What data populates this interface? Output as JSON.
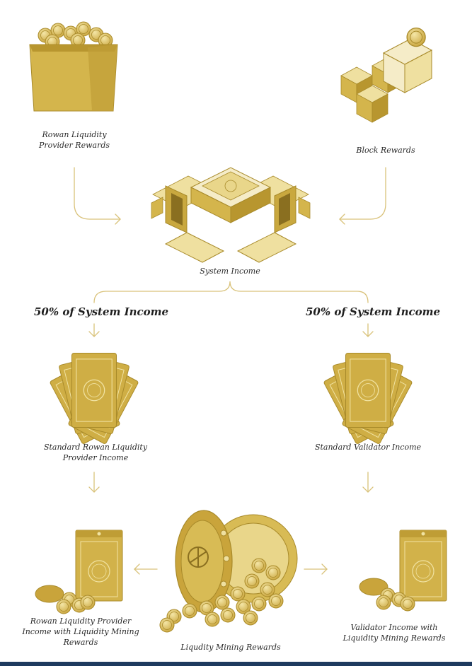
{
  "labels": {
    "rowan_lp_rewards": "Rowan Liquidity\nProvider Rewards",
    "block_rewards": "Block Rewards",
    "system_income": "System Income",
    "split_left": "50% of System Income",
    "split_right": "50% of System Income",
    "std_rowan_lp_income": "Standard Rowan Liquidity\nProvider Income",
    "std_validator_income": "Standard Validator Income",
    "rowan_lp_with_lm": "Rowan Liquidity Provider\nIncome with Liquidity Mining\nRewards",
    "liquidity_mining_rewards": "Liqudity Mining Rewards",
    "validator_with_lm": "Validator Income with\nLiquidity Mining Rewards"
  },
  "colors": {
    "gold": "#d4b54c",
    "gold_light": "#ecd98a",
    "gold_dark": "#a88a2a",
    "cream": "#f5ecc8",
    "line": "#d9c27a",
    "footer": "#1e3a5f"
  },
  "icons": {
    "rowan_lp_rewards": "coin-basket-icon",
    "block_rewards": "blocks-icon",
    "system_income": "laptops-server-icon",
    "std_rowan_lp_income": "envelopes-fan-icon",
    "std_validator_income": "envelopes-fan-icon",
    "rowan_lp_with_lm": "envelope-coins-icon",
    "liquidity_mining_rewards": "vault-coins-icon",
    "validator_with_lm": "envelope-coins-icon"
  }
}
